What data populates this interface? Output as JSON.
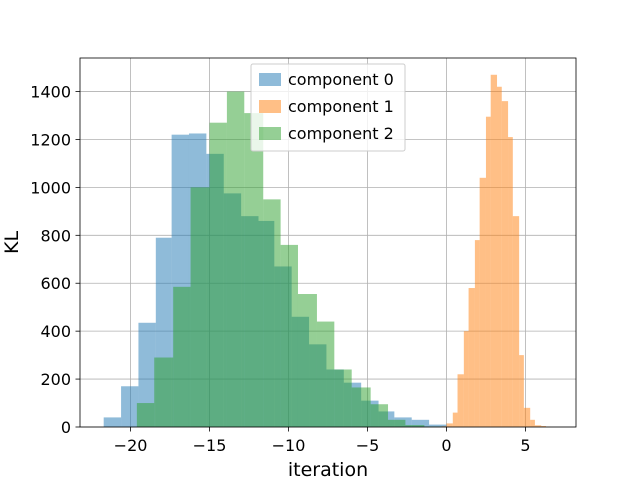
{
  "colors": {
    "series": [
      "#1f77b4",
      "#ff7f0e",
      "#2ca02c"
    ],
    "grid": "#b0b0b0",
    "axes": "#000000"
  },
  "chart_data": {
    "type": "histogram",
    "title": "",
    "xlabel": "iteration",
    "ylabel": "KL",
    "xlim": [
      -23.2,
      8.2
    ],
    "ylim": [
      0,
      1540
    ],
    "xticks": [
      -20,
      -15,
      -10,
      -5,
      0,
      5
    ],
    "xtick_labels": [
      "−20",
      "−15",
      "−10",
      "−5",
      "0",
      "5"
    ],
    "yticks": [
      0,
      200,
      400,
      600,
      800,
      1000,
      1200,
      1400
    ],
    "ytick_labels": [
      "0",
      "200",
      "400",
      "600",
      "800",
      "1000",
      "1200",
      "1400"
    ],
    "grid": true,
    "legend_position": "upper center",
    "bar_alpha": 0.5,
    "series": [
      {
        "name": "component 0",
        "bin_edges": [
          -21.7,
          -20.6,
          -19.5,
          -18.4,
          -17.4,
          -16.3,
          -15.2,
          -14.1,
          -13.0,
          -11.9,
          -10.9,
          -9.8,
          -8.7,
          -7.6,
          -6.5,
          -5.4,
          -4.3,
          -3.3,
          -2.2,
          -1.1,
          0.0
        ],
        "counts": [
          40,
          170,
          435,
          790,
          1220,
          1225,
          1140,
          975,
          880,
          860,
          670,
          460,
          345,
          240,
          185,
          110,
          65,
          40,
          30,
          10
        ]
      },
      {
        "name": "component 1",
        "bin_edges": [
          -0.3,
          0.0,
          0.4,
          0.7,
          1.1,
          1.4,
          1.8,
          2.1,
          2.5,
          2.8,
          3.2,
          3.5,
          3.9,
          4.2,
          4.6,
          4.9,
          5.3,
          5.6,
          6.0,
          6.3,
          6.6
        ],
        "counts": [
          3,
          15,
          60,
          220,
          400,
          580,
          780,
          1040,
          1295,
          1470,
          1420,
          1360,
          1210,
          880,
          300,
          80,
          30,
          7,
          4,
          1
        ]
      },
      {
        "name": "component 2",
        "bin_edges": [
          -19.6,
          -18.5,
          -17.3,
          -16.2,
          -15.0,
          -13.9,
          -12.8,
          -11.6,
          -10.5,
          -9.4,
          -8.2,
          -7.1,
          -6.0,
          -4.8,
          -3.7,
          -2.6,
          -1.4,
          -0.3
        ],
        "counts": [
          100,
          290,
          585,
          1000,
          1270,
          1400,
          1310,
          950,
          760,
          555,
          440,
          240,
          165,
          95,
          30,
          8,
          2
        ]
      }
    ]
  }
}
